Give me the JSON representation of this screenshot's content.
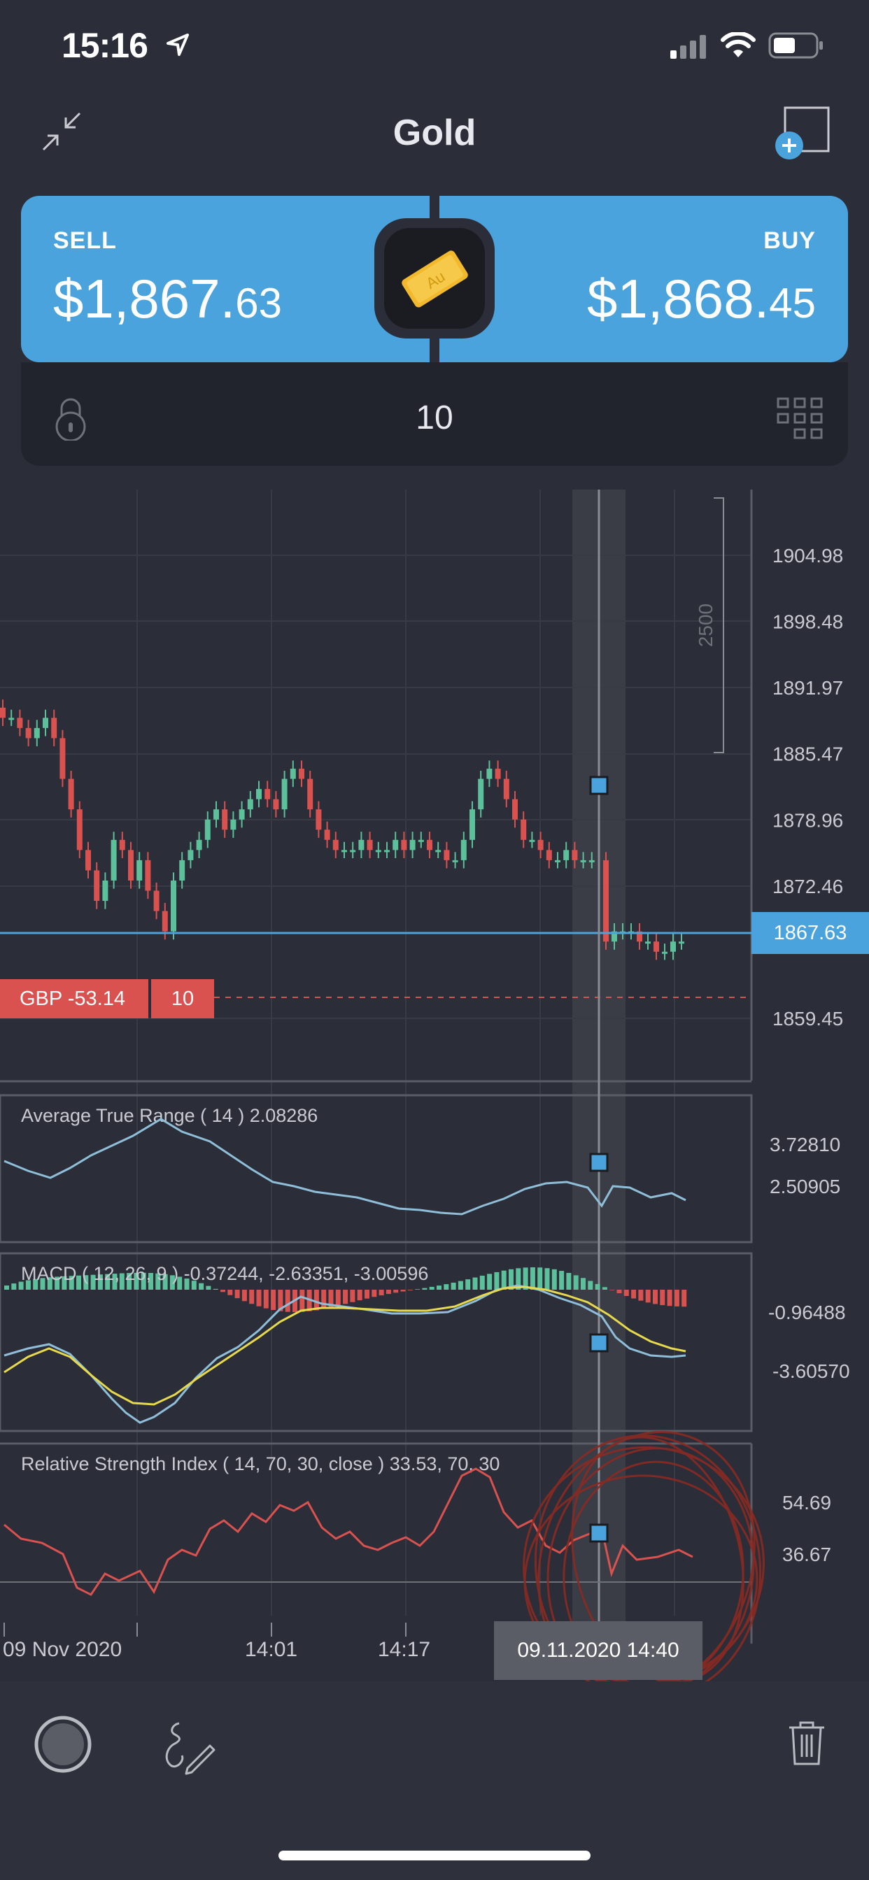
{
  "status_bar": {
    "time": "15:16"
  },
  "header": {
    "title": "Gold"
  },
  "trade": {
    "sell": {
      "label": "SELL",
      "price_main": "$1,867.",
      "price_decimal": "63"
    },
    "buy": {
      "label": "BUY",
      "price_main": "$1,868.",
      "price_decimal": "45"
    },
    "quantity": "10",
    "asset_badge_text": "Au"
  },
  "colors": {
    "accent": "#4aa3dc",
    "up": "#5cc09a",
    "down": "#d9524f",
    "background": "#2b2d38"
  },
  "icons": {
    "collapse": "collapse-arrows-icon",
    "add_window": "add-window-icon",
    "lock": "lock-icon",
    "grid": "grid-icon",
    "record": "record-icon",
    "draw": "draw-pen-icon",
    "trash": "trash-icon"
  },
  "chart": {
    "price_axis": [
      "1904.98",
      "1898.48",
      "1891.97",
      "1885.47",
      "1878.96",
      "1872.46",
      "1859.45"
    ],
    "current_price": "1867.63",
    "range_label": "2500",
    "position": {
      "pl": "GBP -53.14",
      "qty": "10"
    },
    "time_axis": [
      "09 Nov 2020",
      "14:01",
      "14:17"
    ],
    "crosshair_time": "09.11.2020 14:40"
  },
  "indicators": {
    "atr": {
      "label": "Average True Range ( 14 ) 2.08286",
      "levels": [
        "3.72810",
        "2.50905"
      ]
    },
    "macd": {
      "label": "MACD ( 12, 26, 9 ) -0.37244, -2.63351, -3.00596",
      "levels": [
        "-0.96488",
        "-3.60570"
      ]
    },
    "rsi": {
      "label": "Relative Strength Index ( 14, 70, 30, close ) 33.53, 70, 30",
      "levels": [
        "54.69",
        "36.67"
      ]
    }
  },
  "chart_data": {
    "type": "candlestick",
    "instrument": "Gold",
    "x_labels": [
      "09 Nov 2020",
      "14:01",
      "14:17",
      "09.11.2020 14:40"
    ],
    "y_ticks": [
      1904.98,
      1898.48,
      1891.97,
      1885.47,
      1878.96,
      1872.46,
      1859.45
    ],
    "ylim": [
      1855,
      1910
    ],
    "current_price": 1867.63,
    "close": [
      1889,
      1889,
      1888,
      1887,
      1888,
      1889,
      1887,
      1883,
      1880,
      1876,
      1874,
      1871,
      1873,
      1877,
      1876,
      1873,
      1875,
      1872,
      1870,
      1868,
      1873,
      1875,
      1876,
      1877,
      1879,
      1880,
      1878,
      1879,
      1880,
      1881,
      1882,
      1881,
      1880,
      1883,
      1884,
      1883,
      1880,
      1878,
      1877,
      1876,
      1876,
      1876,
      1877,
      1876,
      1876,
      1876,
      1877,
      1876,
      1877,
      1877,
      1876,
      1876,
      1875,
      1875,
      1877,
      1880,
      1883,
      1884,
      1883,
      1881,
      1879,
      1877,
      1877,
      1876,
      1875,
      1875,
      1876,
      1875,
      1875,
      1875,
      1867,
      1868,
      1868,
      1868,
      1867,
      1867,
      1866,
      1866,
      1867,
      1867
    ]
  }
}
